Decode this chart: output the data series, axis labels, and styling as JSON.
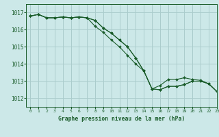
{
  "title": "Graphe pression niveau de la mer (hPa)",
  "bg_color": "#cce8e8",
  "grid_color": "#aacccc",
  "line_color": "#1a5c2a",
  "xlim": [
    -0.5,
    23
  ],
  "ylim": [
    1011.5,
    1017.5
  ],
  "yticks": [
    1012,
    1013,
    1014,
    1015,
    1016,
    1017
  ],
  "xticks": [
    0,
    1,
    2,
    3,
    4,
    5,
    6,
    7,
    8,
    9,
    10,
    11,
    12,
    13,
    14,
    15,
    16,
    17,
    18,
    19,
    20,
    21,
    22,
    23
  ],
  "series": [
    [
      1016.8,
      1016.9,
      1016.7,
      1016.7,
      1016.75,
      1016.7,
      1016.75,
      1016.7,
      1016.55,
      1016.1,
      1015.8,
      1015.4,
      1015.0,
      1014.35,
      1013.6,
      1012.55,
      1012.5,
      1012.7,
      1012.7,
      1012.8,
      1013.0,
      1013.0,
      1012.85,
      1012.4
    ],
    [
      1016.8,
      1016.9,
      1016.7,
      1016.7,
      1016.75,
      1016.7,
      1016.75,
      1016.7,
      1016.55,
      1016.1,
      1015.8,
      1015.4,
      1015.0,
      1014.35,
      1013.6,
      1012.55,
      1012.75,
      1013.1,
      1013.1,
      1013.2,
      1013.1,
      1013.05,
      1012.85,
      1012.4
    ],
    [
      1016.8,
      1016.9,
      1016.7,
      1016.7,
      1016.75,
      1016.7,
      1016.75,
      1016.7,
      1016.2,
      1015.85,
      1015.4,
      1015.0,
      1014.5,
      1014.0,
      1013.6,
      1012.55,
      1012.5,
      1012.7,
      1012.7,
      1012.8,
      1013.0,
      1013.0,
      1012.85,
      1012.4
    ]
  ]
}
